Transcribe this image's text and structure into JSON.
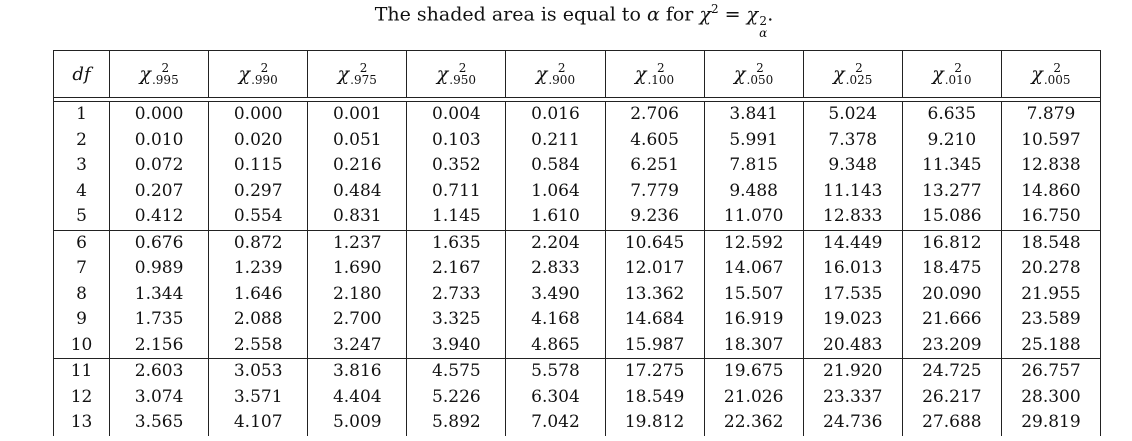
{
  "caption": {
    "prefix": "The shaded area is equal to",
    "alpha_symbol": "α",
    "for_word": "for",
    "chi_symbol": "χ",
    "exponent": "2",
    "equals": "=",
    "subscript_alpha": "α",
    "period": "."
  },
  "table": {
    "df_label": "df",
    "chi_symbol": "χ",
    "exponent": "2",
    "columns": [
      ".995",
      ".990",
      ".975",
      ".950",
      ".900",
      ".100",
      ".050",
      ".025",
      ".010",
      ".005"
    ],
    "rows": [
      {
        "df": "1",
        "values": [
          "0.000",
          "0.000",
          "0.001",
          "0.004",
          "0.016",
          "2.706",
          "3.841",
          "5.024",
          "6.635",
          "7.879"
        ]
      },
      {
        "df": "2",
        "values": [
          "0.010",
          "0.020",
          "0.051",
          "0.103",
          "0.211",
          "4.605",
          "5.991",
          "7.378",
          "9.210",
          "10.597"
        ]
      },
      {
        "df": "3",
        "values": [
          "0.072",
          "0.115",
          "0.216",
          "0.352",
          "0.584",
          "6.251",
          "7.815",
          "9.348",
          "11.345",
          "12.838"
        ]
      },
      {
        "df": "4",
        "values": [
          "0.207",
          "0.297",
          "0.484",
          "0.711",
          "1.064",
          "7.779",
          "9.488",
          "11.143",
          "13.277",
          "14.860"
        ]
      },
      {
        "df": "5",
        "values": [
          "0.412",
          "0.554",
          "0.831",
          "1.145",
          "1.610",
          "9.236",
          "11.070",
          "12.833",
          "15.086",
          "16.750"
        ]
      },
      {
        "df": "6",
        "values": [
          "0.676",
          "0.872",
          "1.237",
          "1.635",
          "2.204",
          "10.645",
          "12.592",
          "14.449",
          "16.812",
          "18.548"
        ]
      },
      {
        "df": "7",
        "values": [
          "0.989",
          "1.239",
          "1.690",
          "2.167",
          "2.833",
          "12.017",
          "14.067",
          "16.013",
          "18.475",
          "20.278"
        ]
      },
      {
        "df": "8",
        "values": [
          "1.344",
          "1.646",
          "2.180",
          "2.733",
          "3.490",
          "13.362",
          "15.507",
          "17.535",
          "20.090",
          "21.955"
        ]
      },
      {
        "df": "9",
        "values": [
          "1.735",
          "2.088",
          "2.700",
          "3.325",
          "4.168",
          "14.684",
          "16.919",
          "19.023",
          "21.666",
          "23.589"
        ]
      },
      {
        "df": "10",
        "values": [
          "2.156",
          "2.558",
          "3.247",
          "3.940",
          "4.865",
          "15.987",
          "18.307",
          "20.483",
          "23.209",
          "25.188"
        ]
      },
      {
        "df": "11",
        "values": [
          "2.603",
          "3.053",
          "3.816",
          "4.575",
          "5.578",
          "17.275",
          "19.675",
          "21.920",
          "24.725",
          "26.757"
        ]
      },
      {
        "df": "12",
        "values": [
          "3.074",
          "3.571",
          "4.404",
          "5.226",
          "6.304",
          "18.549",
          "21.026",
          "23.337",
          "26.217",
          "28.300"
        ]
      },
      {
        "df": "13",
        "values": [
          "3.565",
          "4.107",
          "5.009",
          "5.892",
          "7.042",
          "19.812",
          "22.362",
          "24.736",
          "27.688",
          "29.819"
        ]
      }
    ]
  }
}
